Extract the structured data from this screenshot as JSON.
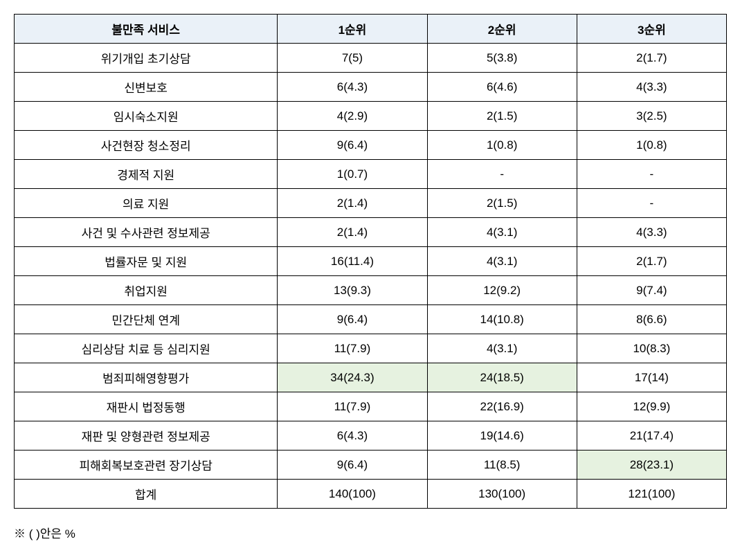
{
  "table": {
    "columns": [
      "불만족 서비스",
      "1순위",
      "2순위",
      "3순위"
    ],
    "rows": [
      {
        "service": "위기개입 초기상담",
        "rank1": {
          "text": "7(5)",
          "highlight": false
        },
        "rank2": {
          "text": "5(3.8)",
          "highlight": false
        },
        "rank3": {
          "text": "2(1.7)",
          "highlight": false
        }
      },
      {
        "service": "신변보호",
        "rank1": {
          "text": "6(4.3)",
          "highlight": false
        },
        "rank2": {
          "text": "6(4.6)",
          "highlight": false
        },
        "rank3": {
          "text": "4(3.3)",
          "highlight": false
        }
      },
      {
        "service": "임시숙소지원",
        "rank1": {
          "text": "4(2.9)",
          "highlight": false
        },
        "rank2": {
          "text": "2(1.5)",
          "highlight": false
        },
        "rank3": {
          "text": "3(2.5)",
          "highlight": false
        }
      },
      {
        "service": "사건현장 청소정리",
        "rank1": {
          "text": "9(6.4)",
          "highlight": false
        },
        "rank2": {
          "text": "1(0.8)",
          "highlight": false
        },
        "rank3": {
          "text": "1(0.8)",
          "highlight": false
        }
      },
      {
        "service": "경제적 지원",
        "rank1": {
          "text": "1(0.7)",
          "highlight": false
        },
        "rank2": {
          "text": "-",
          "highlight": false
        },
        "rank3": {
          "text": "-",
          "highlight": false
        }
      },
      {
        "service": "의료 지원",
        "rank1": {
          "text": "2(1.4)",
          "highlight": false
        },
        "rank2": {
          "text": "2(1.5)",
          "highlight": false
        },
        "rank3": {
          "text": "-",
          "highlight": false
        }
      },
      {
        "service": "사건 및 수사관련 정보제공",
        "rank1": {
          "text": "2(1.4)",
          "highlight": false
        },
        "rank2": {
          "text": "4(3.1)",
          "highlight": false
        },
        "rank3": {
          "text": "4(3.3)",
          "highlight": false
        }
      },
      {
        "service": "법률자문 및 지원",
        "rank1": {
          "text": "16(11.4)",
          "highlight": false
        },
        "rank2": {
          "text": "4(3.1)",
          "highlight": false
        },
        "rank3": {
          "text": "2(1.7)",
          "highlight": false
        }
      },
      {
        "service": "취업지원",
        "rank1": {
          "text": "13(9.3)",
          "highlight": false
        },
        "rank2": {
          "text": "12(9.2)",
          "highlight": false
        },
        "rank3": {
          "text": "9(7.4)",
          "highlight": false
        }
      },
      {
        "service": "민간단체 연계",
        "rank1": {
          "text": "9(6.4)",
          "highlight": false
        },
        "rank2": {
          "text": "14(10.8)",
          "highlight": false
        },
        "rank3": {
          "text": "8(6.6)",
          "highlight": false
        }
      },
      {
        "service": "심리상담 치료 등 심리지원",
        "rank1": {
          "text": "11(7.9)",
          "highlight": false
        },
        "rank2": {
          "text": "4(3.1)",
          "highlight": false
        },
        "rank3": {
          "text": "10(8.3)",
          "highlight": false
        }
      },
      {
        "service": "범죄피해영향평가",
        "rank1": {
          "text": "34(24.3)",
          "highlight": true
        },
        "rank2": {
          "text": "24(18.5)",
          "highlight": true
        },
        "rank3": {
          "text": "17(14)",
          "highlight": false
        }
      },
      {
        "service": "재판시 법정동행",
        "rank1": {
          "text": "11(7.9)",
          "highlight": false
        },
        "rank2": {
          "text": "22(16.9)",
          "highlight": false
        },
        "rank3": {
          "text": "12(9.9)",
          "highlight": false
        }
      },
      {
        "service": "재판 및 양형관련 정보제공",
        "rank1": {
          "text": "6(4.3)",
          "highlight": false
        },
        "rank2": {
          "text": "19(14.6)",
          "highlight": false
        },
        "rank3": {
          "text": "21(17.4)",
          "highlight": false
        }
      },
      {
        "service": "피해회복보호관련 장기상담",
        "rank1": {
          "text": "9(6.4)",
          "highlight": false
        },
        "rank2": {
          "text": "11(8.5)",
          "highlight": false
        },
        "rank3": {
          "text": "28(23.1)",
          "highlight": true
        }
      },
      {
        "service": "합계",
        "rank1": {
          "text": "140(100)",
          "highlight": false
        },
        "rank2": {
          "text": "130(100)",
          "highlight": false
        },
        "rank3": {
          "text": "121(100)",
          "highlight": false
        }
      }
    ],
    "header_bg": "#eaf1f8",
    "highlight_bg": "#e6f2e0",
    "border_color": "#000000"
  },
  "footnote": "※ (   )안은   %"
}
